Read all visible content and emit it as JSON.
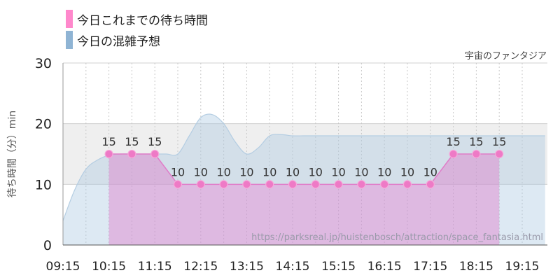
{
  "legend": {
    "items": [
      {
        "label": "今日これまでの待ち時間",
        "color": "#ff88cc"
      },
      {
        "label": "今日の混雑予想",
        "color": "#8fb4d4"
      }
    ]
  },
  "attraction_name": "宇宙のファンタジア",
  "source_url": "https://parksreal.jp/huistenbosch/attraction/space_fantasia.html",
  "chart_data": {
    "type": "area",
    "title": "",
    "xlabel": "",
    "ylabel": "待ち時間（分）min",
    "ylim": [
      0,
      30
    ],
    "yticks": [
      0,
      10,
      20,
      30
    ],
    "xticks": [
      "09:15",
      "10:15",
      "11:15",
      "12:15",
      "13:15",
      "14:15",
      "15:15",
      "16:15",
      "17:15",
      "18:15",
      "19:15"
    ],
    "highlight_band": [
      10,
      20
    ],
    "series": [
      {
        "name": "今日これまでの待ち時間",
        "color": "#ff88cc",
        "x": [
          "10:15",
          "10:45",
          "11:15",
          "11:45",
          "12:15",
          "12:45",
          "13:15",
          "13:45",
          "14:15",
          "14:45",
          "15:15",
          "15:45",
          "16:15",
          "16:45",
          "17:15",
          "17:45",
          "18:15",
          "18:45"
        ],
        "values": [
          15,
          15,
          15,
          10,
          10,
          10,
          10,
          10,
          10,
          10,
          10,
          10,
          10,
          10,
          10,
          15,
          15,
          15
        ]
      },
      {
        "name": "今日の混雑予想",
        "color": "#8fb4d4",
        "x": [
          "09:15",
          "09:30",
          "09:45",
          "10:00",
          "10:15",
          "10:30",
          "10:45",
          "11:00",
          "11:15",
          "11:30",
          "11:45",
          "12:00",
          "12:15",
          "12:30",
          "12:45",
          "13:00",
          "13:15",
          "13:30",
          "13:45",
          "14:00",
          "14:15",
          "14:30",
          "14:45",
          "15:00",
          "16:00",
          "17:00",
          "18:00",
          "19:00",
          "19:45"
        ],
        "values": [
          4,
          9,
          12.5,
          14,
          14.8,
          15,
          15,
          15,
          15,
          15,
          15,
          18,
          21,
          21.5,
          20,
          17,
          15,
          16,
          18,
          18.2,
          18,
          18,
          18,
          18,
          18,
          18,
          18,
          18,
          18
        ]
      }
    ]
  }
}
